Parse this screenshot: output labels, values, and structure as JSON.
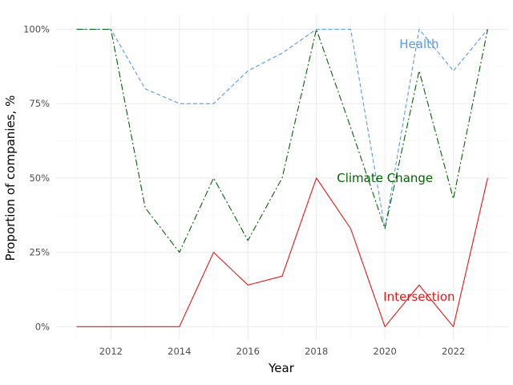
{
  "chart_data": {
    "type": "line",
    "title": "",
    "xlabel": "Year",
    "ylabel": "Proportion of companies, %",
    "x": [
      2011,
      2012,
      2013,
      2014,
      2015,
      2016,
      2017,
      2018,
      2019,
      2020,
      2021,
      2022,
      2023
    ],
    "xlim": [
      2010.4,
      2023.6
    ],
    "ylim": [
      -4.5,
      105
    ],
    "x_ticks": [
      2012,
      2014,
      2016,
      2018,
      2020,
      2022
    ],
    "x_tick_labels": [
      "2012",
      "2014",
      "2016",
      "2018",
      "2020",
      "2022"
    ],
    "y_ticks": [
      0,
      25,
      50,
      75,
      100
    ],
    "y_tick_labels": [
      "0%",
      "25%",
      "50%",
      "75%",
      "100%"
    ],
    "grid": true,
    "legend": "none (direct labels on lines)",
    "series": [
      {
        "name": "Health",
        "color": "#5599ee",
        "line_style": "dashed",
        "values": [
          100,
          100,
          80,
          75,
          75,
          86,
          92,
          100,
          100,
          33,
          100,
          86,
          100
        ],
        "label_anchor": {
          "x": 2021,
          "y": 95
        }
      },
      {
        "name": "Climate Change",
        "color": "#006400",
        "line_style": "dashdot",
        "values": [
          100,
          100,
          40,
          25,
          50,
          29,
          50,
          100,
          67,
          33,
          86,
          43,
          100
        ],
        "label_anchor": {
          "x": 2020,
          "y": 50
        }
      },
      {
        "name": "Intersection",
        "color": "#ee1111",
        "line_style": "solid",
        "values": [
          0,
          0,
          0,
          0,
          25,
          14,
          17,
          50,
          33,
          0,
          14,
          0,
          50
        ],
        "label_anchor": {
          "x": 2021,
          "y": 10
        }
      }
    ]
  }
}
